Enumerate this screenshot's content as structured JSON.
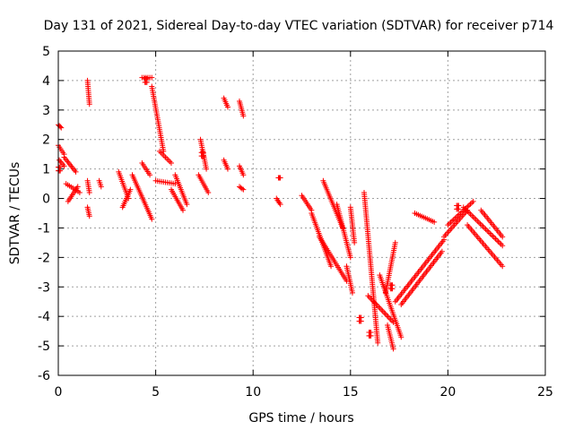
{
  "chart_data": {
    "type": "scatter",
    "title": "Day 131 of 2021, Sidereal Day-to-day VTEC variation (SDTVAR) for receiver p714",
    "xlabel": "GPS time / hours",
    "ylabel": "SDTVAR / TECUs",
    "xlim": [
      0,
      25
    ],
    "ylim": [
      -6,
      5
    ],
    "xticks": [
      0,
      5,
      10,
      15,
      20,
      25
    ],
    "yticks": [
      -6,
      -5,
      -4,
      -3,
      -2,
      -1,
      0,
      1,
      2,
      3,
      4,
      5
    ],
    "grid": true,
    "marker": "plus",
    "colors": {
      "series": "#ff0000",
      "grid": "#a0a0a0",
      "axis": "#000000"
    },
    "series": [
      {
        "name": "SDTVAR",
        "segments": [
          {
            "x0": 0.0,
            "x1": 0.15,
            "y0": 2.5,
            "y1": 2.4
          },
          {
            "x0": 0.0,
            "x1": 0.3,
            "y0": 1.8,
            "y1": 1.5
          },
          {
            "x0": 0.05,
            "x1": 0.3,
            "y0": 1.3,
            "y1": 1.1
          },
          {
            "x0": 0.3,
            "x1": 0.9,
            "y0": 1.4,
            "y1": 0.9
          },
          {
            "x0": 0.4,
            "x1": 1.1,
            "y0": 0.5,
            "y1": 0.2
          },
          {
            "x0": 0.5,
            "x1": 1.0,
            "y0": -0.1,
            "y1": 0.4
          },
          {
            "x0": 1.5,
            "x1": 1.6,
            "y0": 4.0,
            "y1": 3.2
          },
          {
            "x0": 1.5,
            "x1": 1.6,
            "y0": 0.6,
            "y1": 0.2
          },
          {
            "x0": 1.5,
            "x1": 1.6,
            "y0": -0.3,
            "y1": -0.6
          },
          {
            "x0": 2.1,
            "x1": 2.2,
            "y0": 0.6,
            "y1": 0.4
          },
          {
            "x0": 3.1,
            "x1": 3.6,
            "y0": 0.9,
            "y1": 0.0
          },
          {
            "x0": 3.3,
            "x1": 3.7,
            "y0": -0.3,
            "y1": 0.3
          },
          {
            "x0": 3.8,
            "x1": 4.8,
            "y0": 0.8,
            "y1": -0.7
          },
          {
            "x0": 4.3,
            "x1": 4.8,
            "y0": 4.1,
            "y1": 4.1
          },
          {
            "x0": 4.8,
            "x1": 5.4,
            "y0": 3.8,
            "y1": 1.6
          },
          {
            "x0": 4.3,
            "x1": 4.7,
            "y0": 1.2,
            "y1": 0.8
          },
          {
            "x0": 5.2,
            "x1": 5.8,
            "y0": 1.6,
            "y1": 1.2
          },
          {
            "x0": 5.0,
            "x1": 6.0,
            "y0": 0.6,
            "y1": 0.5
          },
          {
            "x0": 5.8,
            "x1": 6.4,
            "y0": 0.3,
            "y1": -0.4
          },
          {
            "x0": 6.0,
            "x1": 6.6,
            "y0": 0.8,
            "y1": -0.2
          },
          {
            "x0": 7.3,
            "x1": 7.6,
            "y0": 2.0,
            "y1": 1.0
          },
          {
            "x0": 7.2,
            "x1": 7.7,
            "y0": 0.8,
            "y1": 0.2
          },
          {
            "x0": 8.5,
            "x1": 8.7,
            "y0": 3.4,
            "y1": 3.1
          },
          {
            "x0": 8.5,
            "x1": 8.7,
            "y0": 1.3,
            "y1": 1.0
          },
          {
            "x0": 9.3,
            "x1": 9.5,
            "y0": 3.3,
            "y1": 2.8
          },
          {
            "x0": 9.3,
            "x1": 9.5,
            "y0": 1.1,
            "y1": 0.8
          },
          {
            "x0": 9.3,
            "x1": 9.5,
            "y0": 0.4,
            "y1": 0.3
          },
          {
            "x0": 11.3,
            "x1": 11.4,
            "y0": 0.7,
            "y1": 0.7
          },
          {
            "x0": 11.2,
            "x1": 11.4,
            "y0": 0.0,
            "y1": -0.2
          },
          {
            "x0": 12.5,
            "x1": 13.0,
            "y0": 0.1,
            "y1": -0.4
          },
          {
            "x0": 13.0,
            "x1": 14.0,
            "y0": -0.5,
            "y1": -2.3
          },
          {
            "x0": 13.4,
            "x1": 14.8,
            "y0": -1.3,
            "y1": -2.8
          },
          {
            "x0": 13.6,
            "x1": 14.6,
            "y0": 0.6,
            "y1": -1.0
          },
          {
            "x0": 14.3,
            "x1": 15.0,
            "y0": -0.2,
            "y1": -2.0
          },
          {
            "x0": 14.8,
            "x1": 15.1,
            "y0": -2.3,
            "y1": -3.2
          },
          {
            "x0": 15.0,
            "x1": 15.2,
            "y0": -0.3,
            "y1": -1.5
          },
          {
            "x0": 15.7,
            "x1": 16.4,
            "y0": 0.2,
            "y1": -4.9
          },
          {
            "x0": 15.9,
            "x1": 17.2,
            "y0": -3.3,
            "y1": -4.2
          },
          {
            "x0": 16.5,
            "x1": 17.6,
            "y0": -2.6,
            "y1": -4.7
          },
          {
            "x0": 16.8,
            "x1": 17.3,
            "y0": -3.2,
            "y1": -1.5
          },
          {
            "x0": 16.9,
            "x1": 17.2,
            "y0": -4.3,
            "y1": -5.1
          },
          {
            "x0": 17.3,
            "x1": 19.8,
            "y0": -3.5,
            "y1": -1.4
          },
          {
            "x0": 17.6,
            "x1": 19.7,
            "y0": -3.6,
            "y1": -1.8
          },
          {
            "x0": 18.3,
            "x1": 19.3,
            "y0": -0.5,
            "y1": -0.8
          },
          {
            "x0": 19.8,
            "x1": 21.0,
            "y0": -1.3,
            "y1": -0.4
          },
          {
            "x0": 20.0,
            "x1": 21.3,
            "y0": -0.9,
            "y1": -0.1
          },
          {
            "x0": 20.8,
            "x1": 22.8,
            "y0": -0.3,
            "y1": -1.6
          },
          {
            "x0": 21.0,
            "x1": 22.8,
            "y0": -0.9,
            "y1": -2.3
          },
          {
            "x0": 21.7,
            "x1": 22.8,
            "y0": -0.4,
            "y1": -1.3
          }
        ],
        "clusters": [
          {
            "x": 0.05,
            "y": 1.0
          },
          {
            "x": 4.5,
            "y": 4.0
          },
          {
            "x": 7.4,
            "y": 1.5
          },
          {
            "x": 15.5,
            "y": -4.1
          },
          {
            "x": 16.0,
            "y": -4.6
          },
          {
            "x": 17.1,
            "y": -3.0
          },
          {
            "x": 20.5,
            "y": -0.3
          }
        ]
      }
    ]
  }
}
